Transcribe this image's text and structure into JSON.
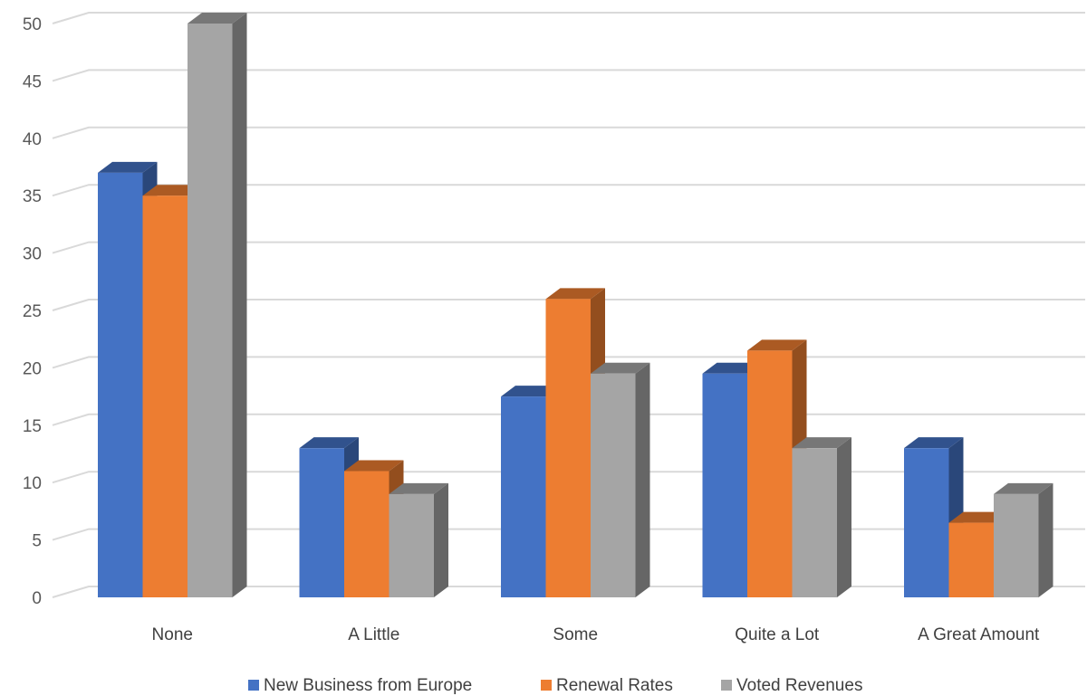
{
  "chart_data": {
    "type": "bar",
    "variant": "3d-clustered-column",
    "title": "",
    "xlabel": "",
    "ylabel": "",
    "categories": [
      "None",
      "A Little",
      "Some",
      "Quite a Lot",
      "A Great Amount"
    ],
    "series": [
      {
        "name": "New Business from Europe",
        "color": "#4472C4",
        "values": [
          37,
          13,
          17.5,
          19.5,
          13
        ]
      },
      {
        "name": "Renewal Rates",
        "color": "#ED7D31",
        "values": [
          35,
          11,
          26,
          21.5,
          6.5
        ]
      },
      {
        "name": "Voted Revenues",
        "color": "#A5A5A5",
        "values": [
          50,
          9,
          19.5,
          13,
          9
        ]
      }
    ],
    "ylim": [
      0,
      50
    ],
    "y_ticks": [
      "0",
      "5",
      "10",
      "15",
      "20",
      "25",
      "30",
      "35",
      "40",
      "45",
      "50"
    ],
    "grid": true,
    "legend_position": "bottom"
  }
}
